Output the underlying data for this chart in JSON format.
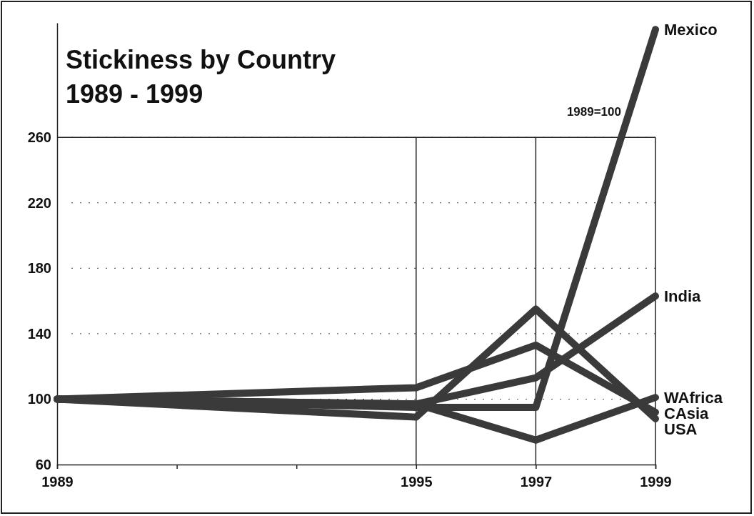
{
  "chart_data": {
    "type": "line",
    "title": "Stickiness by Country\n1989 - 1999",
    "annotations": [
      "1989=100"
    ],
    "x": [
      1989,
      1995,
      1997,
      1999
    ],
    "xlim": [
      1989,
      1999
    ],
    "xticks": [
      1989,
      {
        "value": 1991,
        "label": null
      },
      {
        "value": 1993,
        "label": null
      },
      1995,
      1997,
      1999
    ],
    "ylim": [
      60,
      330
    ],
    "yticks": [
      60,
      100,
      140,
      180,
      220,
      260
    ],
    "grid": "y",
    "line_style": "solid",
    "marker": "none",
    "ref_lines": [
      {
        "axis": "x",
        "value": 1995,
        "label": null
      },
      {
        "axis": "x",
        "value": 1997,
        "label": null
      }
    ],
    "series": [
      {
        "name": "Mexico",
        "color": "#3a3a3a",
        "values": [
          100,
          95,
          95,
          326
        ]
      },
      {
        "name": "India",
        "color": "#3a3a3a",
        "values": [
          100,
          97,
          113,
          163
        ]
      },
      {
        "name": "WAfrica",
        "color": "#3a3a3a",
        "values": [
          100,
          97,
          75,
          101
        ]
      },
      {
        "name": "CAsia",
        "color": "#3a3a3a",
        "values": [
          100,
          107,
          133,
          92
        ]
      },
      {
        "name": "USA",
        "color": "#3a3a3a",
        "values": [
          100,
          89,
          155,
          88
        ]
      }
    ]
  }
}
